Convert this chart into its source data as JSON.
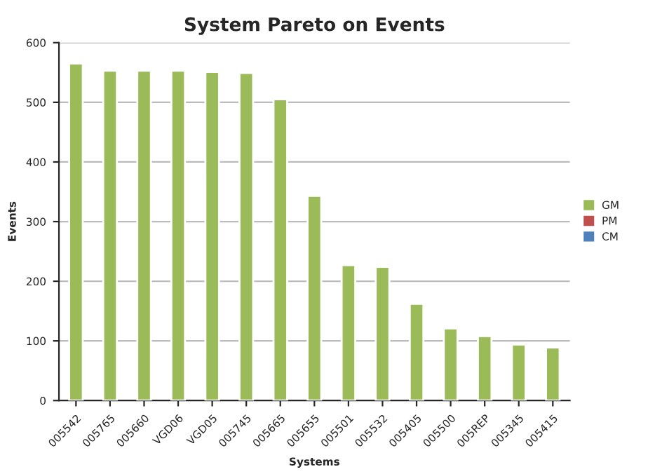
{
  "chart_data": {
    "type": "bar",
    "title": "System Pareto on Events",
    "xlabel": "Systems",
    "ylabel": "Events",
    "categories": [
      "005542",
      "005765",
      "005660",
      "VGD06",
      "VGD05",
      "005745",
      "005665",
      "005655",
      "005501",
      "005532",
      "005405",
      "005500",
      "005REP",
      "005345",
      "005415"
    ],
    "series": [
      {
        "name": "GM",
        "color": "#9bbb59",
        "values": [
          565,
          553,
          553,
          553,
          551,
          549,
          505,
          343,
          227,
          224,
          162,
          121,
          108,
          94,
          89
        ]
      },
      {
        "name": "PM",
        "color": "#c0504d",
        "values": [
          null,
          null,
          null,
          null,
          null,
          null,
          null,
          null,
          null,
          null,
          null,
          null,
          null,
          null,
          null
        ]
      },
      {
        "name": "CM",
        "color": "#4f81bd",
        "values": [
          null,
          null,
          null,
          null,
          null,
          null,
          null,
          null,
          null,
          null,
          null,
          null,
          null,
          null,
          null
        ]
      }
    ],
    "ylim": [
      0,
      600
    ],
    "yticks": [
      0,
      100,
      200,
      300,
      400,
      500,
      600
    ],
    "grid": "y",
    "legend": "right"
  }
}
